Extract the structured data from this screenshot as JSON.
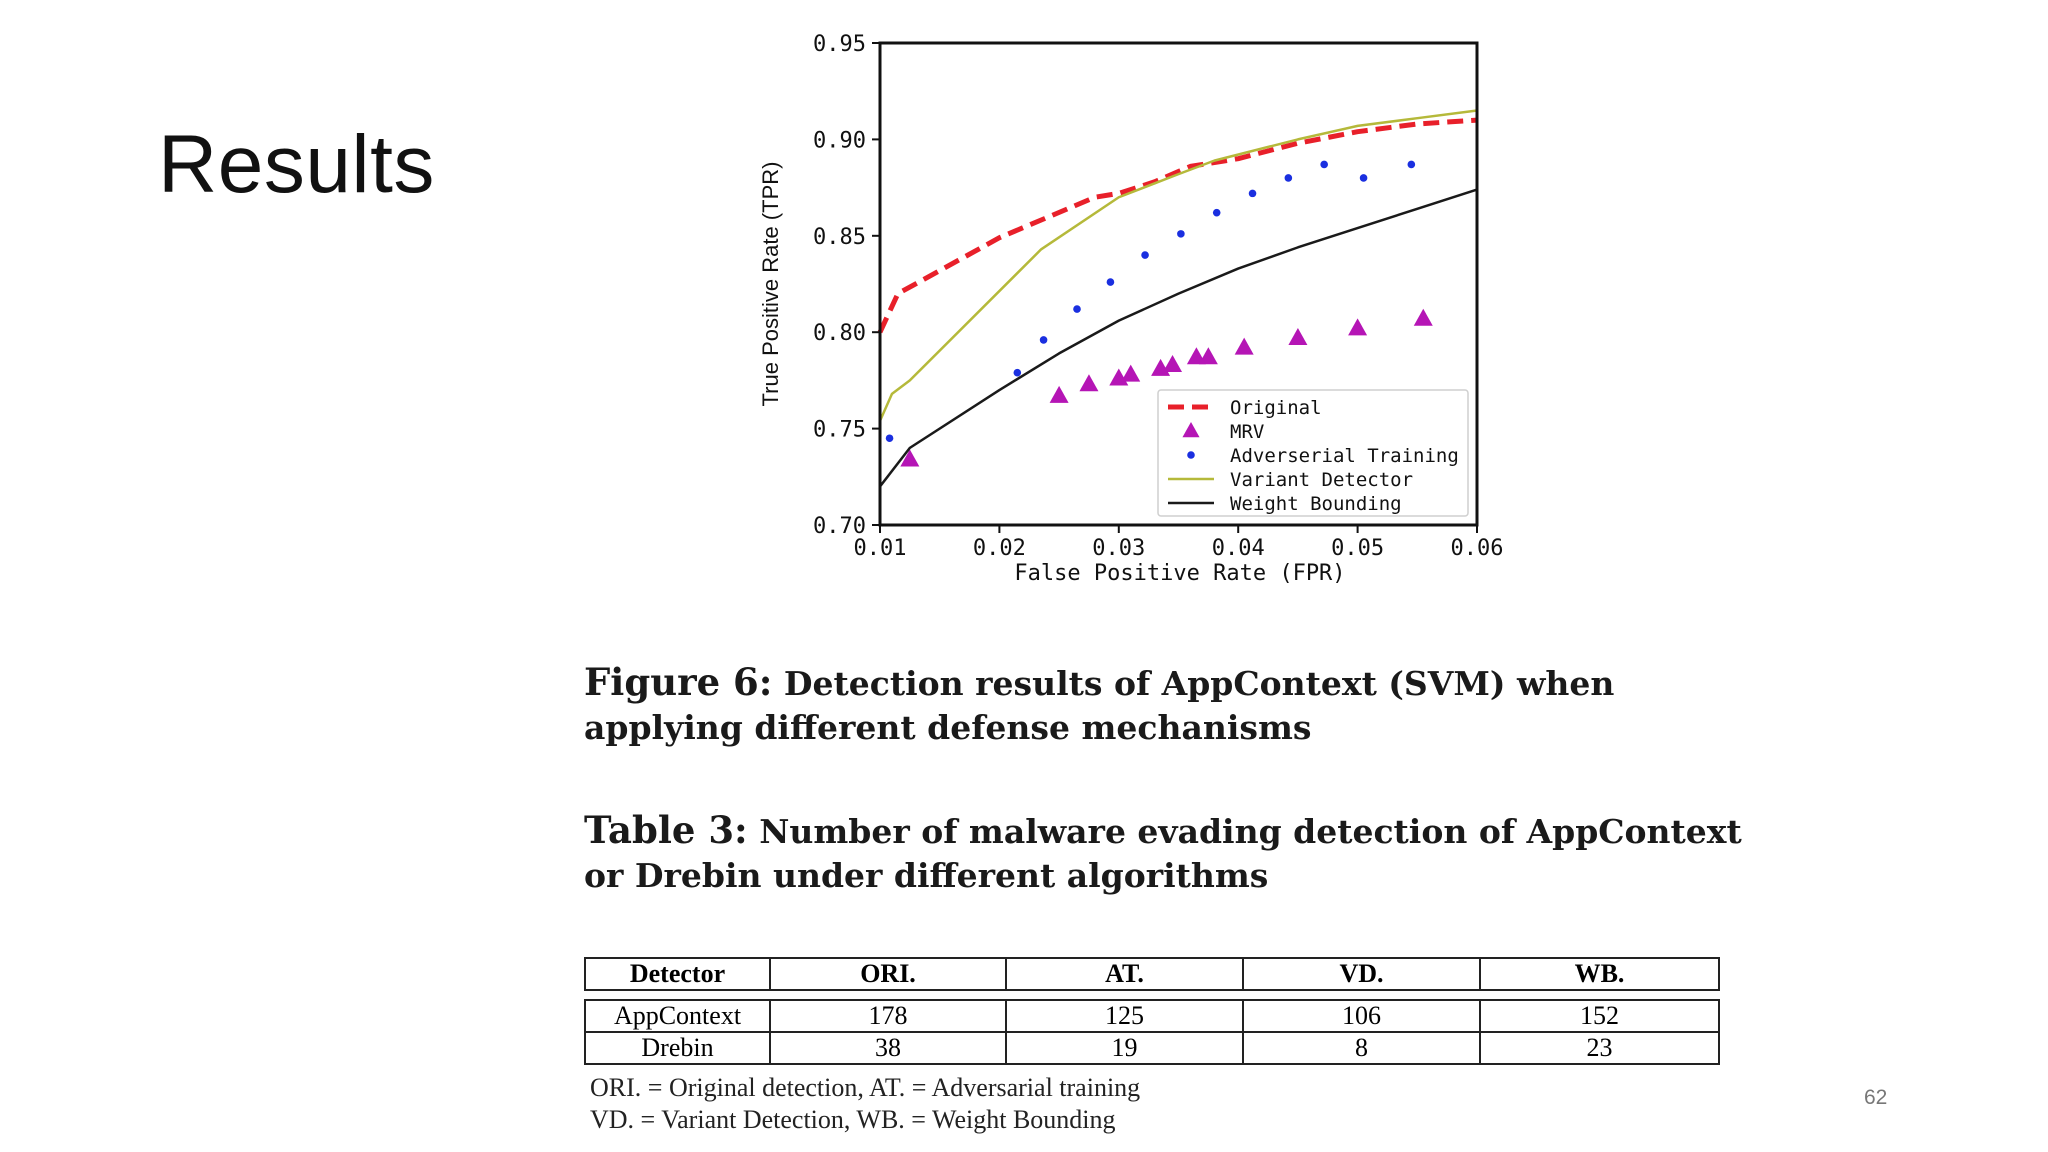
{
  "slide": {
    "title": "Results",
    "page_number": "62"
  },
  "figure": {
    "caption_label": "Figure 6:",
    "caption_text": "Detection results of AppContext (SVM) when applying different defense mechanisms"
  },
  "table": {
    "caption_label": "Table 3:",
    "caption_text": "Number of malware evading detection of AppContext or Drebin under different algorithms",
    "headers": [
      "Detector",
      "ORI.",
      "AT.",
      "VD.",
      "WB."
    ],
    "rows": [
      [
        "AppContext",
        "178",
        "125",
        "106",
        "152"
      ],
      [
        "Drebin",
        "38",
        "19",
        "8",
        "23"
      ]
    ],
    "notes": [
      "ORI. = Original detection, AT. = Adversarial training",
      "VD. = Variant Detection, WB. = Weight Bounding"
    ]
  },
  "chart_data": {
    "type": "line",
    "xlabel": "False Positive Rate (FPR)",
    "ylabel": "True Positive Rate (TPR)",
    "xlim": [
      0.01,
      0.06
    ],
    "ylim": [
      0.7,
      0.95
    ],
    "xticks": [
      "0.01",
      "0.02",
      "0.03",
      "0.04",
      "0.05",
      "0.06"
    ],
    "yticks": [
      "0.70",
      "0.75",
      "0.80",
      "0.85",
      "0.90",
      "0.95"
    ],
    "grid": false,
    "legend_position": "lower-right",
    "series": [
      {
        "name": "Original",
        "style": "dashed-line",
        "color": "#e8202a",
        "x": [
          0.01,
          0.0115,
          0.02,
          0.028,
          0.03,
          0.033,
          0.036,
          0.04,
          0.045,
          0.05,
          0.055,
          0.06
        ],
        "y": [
          0.8,
          0.82,
          0.849,
          0.87,
          0.872,
          0.878,
          0.886,
          0.89,
          0.898,
          0.904,
          0.908,
          0.91
        ]
      },
      {
        "name": "MRV",
        "style": "triangle-marker",
        "color": "#b515b5",
        "x": [
          0.0125,
          0.025,
          0.0275,
          0.03,
          0.031,
          0.0335,
          0.0345,
          0.0365,
          0.0375,
          0.0405,
          0.045,
          0.05,
          0.0555
        ],
        "y": [
          0.734,
          0.767,
          0.773,
          0.776,
          0.778,
          0.781,
          0.783,
          0.787,
          0.787,
          0.792,
          0.797,
          0.802,
          0.807
        ]
      },
      {
        "name": "Adverserial Training",
        "style": "dot-marker",
        "color": "#1a2fe0",
        "x": [
          0.0108,
          0.0215,
          0.0237,
          0.0265,
          0.0293,
          0.0322,
          0.0352,
          0.0382,
          0.0412,
          0.0442,
          0.0472,
          0.0505,
          0.0545
        ],
        "y": [
          0.745,
          0.779,
          0.796,
          0.812,
          0.826,
          0.84,
          0.851,
          0.862,
          0.872,
          0.88,
          0.887,
          0.88,
          0.887
        ]
      },
      {
        "name": "Variant Detector",
        "style": "solid-line",
        "color": "#b5b93a",
        "x": [
          0.01,
          0.011,
          0.0125,
          0.0235,
          0.03,
          0.035,
          0.038,
          0.045,
          0.05,
          0.055,
          0.06
        ],
        "y": [
          0.754,
          0.768,
          0.775,
          0.843,
          0.87,
          0.882,
          0.889,
          0.9,
          0.907,
          0.911,
          0.915
        ]
      },
      {
        "name": "Weight Bounding",
        "style": "solid-line",
        "color": "#1a1a1a",
        "x": [
          0.01,
          0.0125,
          0.02,
          0.025,
          0.03,
          0.035,
          0.04,
          0.045,
          0.05,
          0.055,
          0.06
        ],
        "y": [
          0.72,
          0.74,
          0.77,
          0.789,
          0.806,
          0.82,
          0.833,
          0.844,
          0.854,
          0.864,
          0.874
        ]
      }
    ]
  }
}
